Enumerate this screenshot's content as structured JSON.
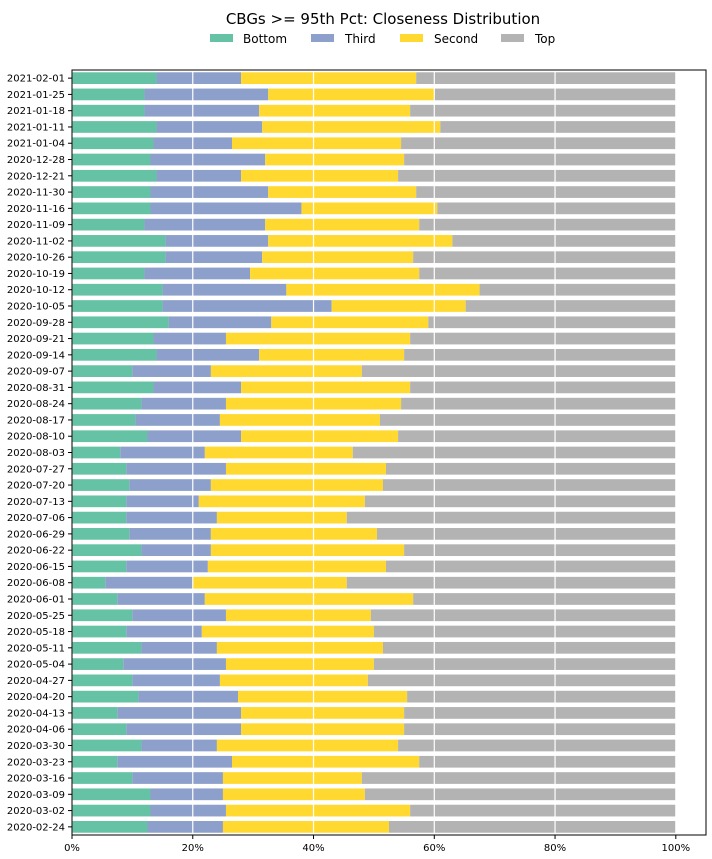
{
  "chart_data": {
    "type": "bar",
    "orientation": "horizontal",
    "stacked": true,
    "title": "CBGs >= 95th Pct: Closeness Distribution",
    "xlabel": "",
    "ylabel": "",
    "xlim": [
      0,
      1.05
    ],
    "x_ticks": [
      "0%",
      "20%",
      "40%",
      "60%",
      "80%",
      "100%"
    ],
    "x_tick_values": [
      0,
      0.2,
      0.4,
      0.6,
      0.8,
      1.0
    ],
    "legend_position": "top-center",
    "grid": "vertical",
    "categories": [
      "2021-02-01",
      "2021-01-25",
      "2021-01-18",
      "2021-01-11",
      "2021-01-04",
      "2020-12-28",
      "2020-12-21",
      "2020-11-30",
      "2020-11-16",
      "2020-11-09",
      "2020-11-02",
      "2020-10-26",
      "2020-10-19",
      "2020-10-12",
      "2020-10-05",
      "2020-09-28",
      "2020-09-21",
      "2020-09-14",
      "2020-09-07",
      "2020-08-31",
      "2020-08-24",
      "2020-08-17",
      "2020-08-10",
      "2020-08-03",
      "2020-07-27",
      "2020-07-20",
      "2020-07-13",
      "2020-07-06",
      "2020-06-29",
      "2020-06-22",
      "2020-06-15",
      "2020-06-08",
      "2020-06-01",
      "2020-05-25",
      "2020-05-18",
      "2020-05-11",
      "2020-05-04",
      "2020-04-27",
      "2020-04-20",
      "2020-04-13",
      "2020-04-06",
      "2020-03-30",
      "2020-03-23",
      "2020-03-16",
      "2020-03-09",
      "2020-03-02",
      "2020-02-24"
    ],
    "series": [
      {
        "name": "Bottom",
        "color": "#66c2a5",
        "values": [
          0.14,
          0.12,
          0.12,
          0.14,
          0.135,
          0.13,
          0.14,
          0.13,
          0.13,
          0.12,
          0.155,
          0.155,
          0.12,
          0.15,
          0.15,
          0.16,
          0.135,
          0.14,
          0.1,
          0.135,
          0.115,
          0.105,
          0.125,
          0.08,
          0.09,
          0.095,
          0.09,
          0.09,
          0.095,
          0.115,
          0.09,
          0.055,
          0.075,
          0.1,
          0.09,
          0.115,
          0.085,
          0.1,
          0.11,
          0.075,
          0.09,
          0.115,
          0.075,
          0.1,
          0.13,
          0.13,
          0.125
        ]
      },
      {
        "name": "Third",
        "color": "#8da0cb",
        "values": [
          0.14,
          0.205,
          0.19,
          0.175,
          0.13,
          0.19,
          0.14,
          0.195,
          0.25,
          0.2,
          0.17,
          0.16,
          0.175,
          0.205,
          0.28,
          0.17,
          0.12,
          0.17,
          0.13,
          0.145,
          0.14,
          0.14,
          0.155,
          0.14,
          0.165,
          0.135,
          0.12,
          0.15,
          0.135,
          0.115,
          0.135,
          0.145,
          0.145,
          0.155,
          0.125,
          0.125,
          0.17,
          0.145,
          0.165,
          0.205,
          0.19,
          0.125,
          0.19,
          0.15,
          0.12,
          0.125,
          0.125
        ]
      },
      {
        "name": "Second",
        "color": "#ffd92f",
        "values": [
          0.29,
          0.275,
          0.25,
          0.295,
          0.28,
          0.23,
          0.26,
          0.245,
          0.225,
          0.255,
          0.305,
          0.25,
          0.28,
          0.32,
          0.222,
          0.26,
          0.305,
          0.24,
          0.25,
          0.28,
          0.29,
          0.265,
          0.26,
          0.245,
          0.265,
          0.285,
          0.275,
          0.215,
          0.275,
          0.32,
          0.295,
          0.255,
          0.345,
          0.24,
          0.285,
          0.275,
          0.245,
          0.245,
          0.28,
          0.27,
          0.27,
          0.3,
          0.31,
          0.23,
          0.235,
          0.305,
          0.275
        ]
      },
      {
        "name": "Top",
        "color": "#b3b3b3",
        "values": [
          0.43,
          0.4,
          0.44,
          0.39,
          0.455,
          0.45,
          0.46,
          0.43,
          0.395,
          0.425,
          0.37,
          0.435,
          0.425,
          0.325,
          0.348,
          0.41,
          0.44,
          0.45,
          0.52,
          0.44,
          0.455,
          0.49,
          0.46,
          0.535,
          0.48,
          0.485,
          0.515,
          0.545,
          0.495,
          0.45,
          0.48,
          0.545,
          0.435,
          0.505,
          0.5,
          0.485,
          0.5,
          0.51,
          0.445,
          0.45,
          0.45,
          0.46,
          0.425,
          0.52,
          0.515,
          0.44,
          0.475
        ]
      }
    ]
  }
}
